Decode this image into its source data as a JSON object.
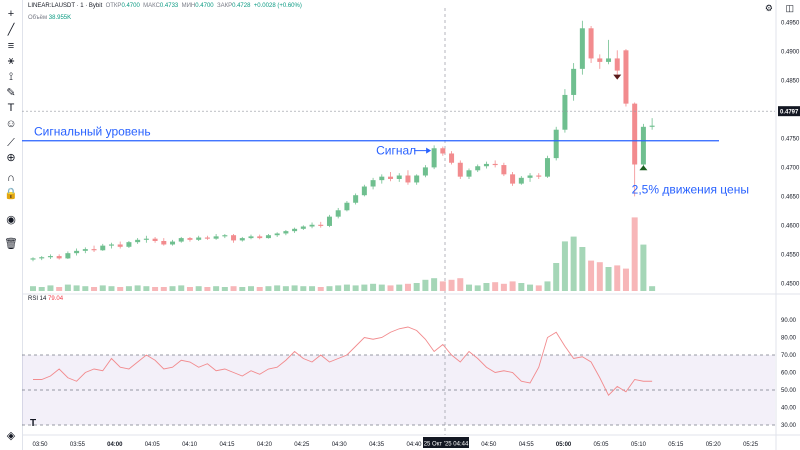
{
  "legend": {
    "symbol": "LINEAR:LAUSDT · 1 · Bybit",
    "open_label": "ОТКР",
    "open": "0.4700",
    "high_label": "МАКС",
    "high": "0.4733",
    "low_label": "МИН",
    "low": "0.4700",
    "close_label": "ЗАКР",
    "close": "0.4728",
    "change": "+0.0028 (+0.60%)"
  },
  "volume_legend": {
    "label": "Объём",
    "value": "38.955K"
  },
  "rsi_legend": {
    "label": "RSI 14",
    "value": "79.04"
  },
  "toolbar_icons": [
    "crosshair-icon",
    "trendline-icon",
    "hlines-icon",
    "fib-icon",
    "pattern-icon",
    "brush-icon",
    "text-icon",
    "emoji-icon",
    "ruler-icon",
    "zoom-icon",
    "magnet-icon",
    "lock-icon",
    "eye-icon",
    "trash-icon"
  ],
  "top_icons": [
    "settings-icon",
    "camera-icon"
  ],
  "chart_data": {
    "type": "candlestick",
    "price_axis": {
      "ticks": [
        "0.4950",
        "0.4900",
        "0.4850",
        "0.4800",
        "0.4750",
        "0.4700",
        "0.4650",
        "0.4600",
        "0.4550",
        "0.4500"
      ],
      "range": [
        0.4485,
        0.4975
      ],
      "last_price_label": "0.4797",
      "last_price": 0.4797
    },
    "time_axis": {
      "ticks": [
        "03:50",
        "03:55",
        "04:00",
        "04:05",
        "04:10",
        "04:15",
        "04:20",
        "04:25",
        "04:30",
        "04:35",
        "04:40",
        "04:45",
        "04:50",
        "04:55",
        "05:00",
        "05:05",
        "05:10",
        "05:15",
        "05:20",
        "05:25"
      ],
      "bold_ticks": [
        "04:00",
        "05:00"
      ],
      "cursor_label": "25 Окт '25",
      "cursor_time": "04:44"
    },
    "candles": [
      {
        "o": 0.4541,
        "h": 0.4545,
        "l": 0.4538,
        "c": 0.4543
      },
      {
        "o": 0.4543,
        "h": 0.4547,
        "l": 0.454,
        "c": 0.4545
      },
      {
        "o": 0.4545,
        "h": 0.455,
        "l": 0.4542,
        "c": 0.4547
      },
      {
        "o": 0.4547,
        "h": 0.455,
        "l": 0.4541,
        "c": 0.4543
      },
      {
        "o": 0.4543,
        "h": 0.4555,
        "l": 0.4542,
        "c": 0.4552
      },
      {
        "o": 0.4552,
        "h": 0.456,
        "l": 0.4548,
        "c": 0.4556
      },
      {
        "o": 0.4556,
        "h": 0.4562,
        "l": 0.4552,
        "c": 0.4559
      },
      {
        "o": 0.4559,
        "h": 0.4565,
        "l": 0.4554,
        "c": 0.4557
      },
      {
        "o": 0.4557,
        "h": 0.4568,
        "l": 0.4556,
        "c": 0.4565
      },
      {
        "o": 0.4565,
        "h": 0.457,
        "l": 0.456,
        "c": 0.4567
      },
      {
        "o": 0.4567,
        "h": 0.4572,
        "l": 0.456,
        "c": 0.4563
      },
      {
        "o": 0.4563,
        "h": 0.4573,
        "l": 0.4561,
        "c": 0.4571
      },
      {
        "o": 0.4571,
        "h": 0.4578,
        "l": 0.4568,
        "c": 0.4575
      },
      {
        "o": 0.4575,
        "h": 0.4582,
        "l": 0.457,
        "c": 0.4577
      },
      {
        "o": 0.4577,
        "h": 0.458,
        "l": 0.457,
        "c": 0.4573
      },
      {
        "o": 0.4573,
        "h": 0.4578,
        "l": 0.4565,
        "c": 0.4567
      },
      {
        "o": 0.4567,
        "h": 0.4575,
        "l": 0.4565,
        "c": 0.4572
      },
      {
        "o": 0.4572,
        "h": 0.458,
        "l": 0.457,
        "c": 0.4578
      },
      {
        "o": 0.4578,
        "h": 0.458,
        "l": 0.4572,
        "c": 0.4575
      },
      {
        "o": 0.4575,
        "h": 0.4582,
        "l": 0.4573,
        "c": 0.4579
      },
      {
        "o": 0.4579,
        "h": 0.4582,
        "l": 0.4575,
        "c": 0.4577
      },
      {
        "o": 0.4577,
        "h": 0.4585,
        "l": 0.4575,
        "c": 0.4581
      },
      {
        "o": 0.4581,
        "h": 0.4585,
        "l": 0.4578,
        "c": 0.4583
      },
      {
        "o": 0.4583,
        "h": 0.4585,
        "l": 0.457,
        "c": 0.4574
      },
      {
        "o": 0.4574,
        "h": 0.458,
        "l": 0.4572,
        "c": 0.4578
      },
      {
        "o": 0.4578,
        "h": 0.4584,
        "l": 0.4576,
        "c": 0.4581
      },
      {
        "o": 0.4581,
        "h": 0.4584,
        "l": 0.4576,
        "c": 0.4578
      },
      {
        "o": 0.4578,
        "h": 0.4585,
        "l": 0.4577,
        "c": 0.4583
      },
      {
        "o": 0.4583,
        "h": 0.4588,
        "l": 0.458,
        "c": 0.4586
      },
      {
        "o": 0.4586,
        "h": 0.4592,
        "l": 0.4583,
        "c": 0.459
      },
      {
        "o": 0.459,
        "h": 0.4596,
        "l": 0.4587,
        "c": 0.4594
      },
      {
        "o": 0.4594,
        "h": 0.46,
        "l": 0.4592,
        "c": 0.4598
      },
      {
        "o": 0.4598,
        "h": 0.4605,
        "l": 0.4595,
        "c": 0.4601
      },
      {
        "o": 0.4601,
        "h": 0.4606,
        "l": 0.4596,
        "c": 0.4599
      },
      {
        "o": 0.4599,
        "h": 0.4618,
        "l": 0.4597,
        "c": 0.4615
      },
      {
        "o": 0.4615,
        "h": 0.463,
        "l": 0.4612,
        "c": 0.4626
      },
      {
        "o": 0.4626,
        "h": 0.4642,
        "l": 0.4624,
        "c": 0.4639
      },
      {
        "o": 0.4639,
        "h": 0.4655,
        "l": 0.4636,
        "c": 0.4652
      },
      {
        "o": 0.4652,
        "h": 0.467,
        "l": 0.465,
        "c": 0.4667
      },
      {
        "o": 0.4667,
        "h": 0.4682,
        "l": 0.4662,
        "c": 0.4678
      },
      {
        "o": 0.4678,
        "h": 0.4688,
        "l": 0.4672,
        "c": 0.4684
      },
      {
        "o": 0.4684,
        "h": 0.4692,
        "l": 0.4676,
        "c": 0.468
      },
      {
        "o": 0.468,
        "h": 0.469,
        "l": 0.4675,
        "c": 0.4686
      },
      {
        "o": 0.4686,
        "h": 0.4695,
        "l": 0.467,
        "c": 0.4674
      },
      {
        "o": 0.4674,
        "h": 0.4688,
        "l": 0.467,
        "c": 0.4686
      },
      {
        "o": 0.4686,
        "h": 0.4704,
        "l": 0.4683,
        "c": 0.47
      },
      {
        "o": 0.47,
        "h": 0.4738,
        "l": 0.4697,
        "c": 0.4733
      },
      {
        "o": 0.4733,
        "h": 0.4736,
        "l": 0.472,
        "c": 0.4724
      },
      {
        "o": 0.4724,
        "h": 0.4728,
        "l": 0.4705,
        "c": 0.4708
      },
      {
        "o": 0.4708,
        "h": 0.4712,
        "l": 0.468,
        "c": 0.4684
      },
      {
        "o": 0.4684,
        "h": 0.4698,
        "l": 0.468,
        "c": 0.4695
      },
      {
        "o": 0.4695,
        "h": 0.4705,
        "l": 0.4692,
        "c": 0.4702
      },
      {
        "o": 0.4702,
        "h": 0.471,
        "l": 0.4698,
        "c": 0.4706
      },
      {
        "o": 0.4706,
        "h": 0.4712,
        "l": 0.47,
        "c": 0.4704
      },
      {
        "o": 0.4704,
        "h": 0.4708,
        "l": 0.4685,
        "c": 0.4688
      },
      {
        "o": 0.4688,
        "h": 0.4692,
        "l": 0.4668,
        "c": 0.4672
      },
      {
        "o": 0.4672,
        "h": 0.4685,
        "l": 0.467,
        "c": 0.4682
      },
      {
        "o": 0.4682,
        "h": 0.469,
        "l": 0.4675,
        "c": 0.4686
      },
      {
        "o": 0.4686,
        "h": 0.469,
        "l": 0.468,
        "c": 0.4684
      },
      {
        "o": 0.4684,
        "h": 0.472,
        "l": 0.4682,
        "c": 0.4716
      },
      {
        "o": 0.4716,
        "h": 0.477,
        "l": 0.4712,
        "c": 0.4765
      },
      {
        "o": 0.4765,
        "h": 0.4835,
        "l": 0.476,
        "c": 0.4825
      },
      {
        "o": 0.4825,
        "h": 0.488,
        "l": 0.4815,
        "c": 0.487
      },
      {
        "o": 0.487,
        "h": 0.4953,
        "l": 0.486,
        "c": 0.494
      },
      {
        "o": 0.494,
        "h": 0.4944,
        "l": 0.488,
        "c": 0.4888
      },
      {
        "o": 0.4888,
        "h": 0.4895,
        "l": 0.487,
        "c": 0.4882
      },
      {
        "o": 0.4882,
        "h": 0.492,
        "l": 0.4878,
        "c": 0.4888
      },
      {
        "o": 0.4888,
        "h": 0.4902,
        "l": 0.486,
        "c": 0.4867
      },
      {
        "o": 0.4902,
        "h": 0.4904,
        "l": 0.4805,
        "c": 0.481
      },
      {
        "o": 0.481,
        "h": 0.4812,
        "l": 0.465,
        "c": 0.4705
      },
      {
        "o": 0.4705,
        "h": 0.4775,
        "l": 0.47,
        "c": 0.477
      },
      {
        "o": 0.477,
        "h": 0.4785,
        "l": 0.4765,
        "c": 0.4772
      }
    ],
    "volume": [
      0.06,
      0.05,
      0.07,
      0.05,
      0.08,
      0.07,
      0.06,
      0.05,
      0.07,
      0.06,
      0.05,
      0.06,
      0.07,
      0.06,
      0.05,
      0.05,
      0.06,
      0.07,
      0.05,
      0.06,
      0.05,
      0.06,
      0.05,
      0.06,
      0.05,
      0.06,
      0.05,
      0.06,
      0.07,
      0.06,
      0.07,
      0.06,
      0.06,
      0.05,
      0.06,
      0.07,
      0.08,
      0.07,
      0.08,
      0.09,
      0.08,
      0.07,
      0.08,
      0.09,
      0.1,
      0.14,
      0.16,
      0.12,
      0.14,
      0.16,
      0.08,
      0.07,
      0.1,
      0.11,
      0.09,
      0.12,
      0.1,
      0.08,
      0.07,
      0.12,
      0.35,
      0.62,
      0.68,
      0.55,
      0.38,
      0.36,
      0.3,
      0.32,
      0.28,
      0.92,
      0.58,
      0.06
    ],
    "rsi": {
      "ticks": [
        "90.00",
        "80.00",
        "70.00",
        "60.00",
        "50.00",
        "40.00",
        "30.00"
      ],
      "overbought": 70,
      "oversold": 30,
      "middle": 50,
      "values": [
        56,
        56,
        58,
        62,
        57,
        55,
        60,
        62,
        61,
        68,
        63,
        62,
        66,
        70,
        67,
        62,
        63,
        67,
        66,
        63,
        65,
        61,
        62,
        60,
        58,
        61,
        59,
        62,
        63,
        67,
        72,
        68,
        66,
        70,
        66,
        68,
        70,
        75,
        80,
        79,
        80,
        83,
        85,
        86,
        84,
        79,
        72,
        76,
        70,
        66,
        72,
        68,
        63,
        60,
        61,
        60,
        55,
        54,
        63,
        80,
        83,
        75,
        68,
        69,
        66,
        57,
        47,
        52,
        49,
        56,
        55,
        55
      ]
    },
    "annotations": [
      {
        "label": "Сигнальный уровень",
        "kind": "horizontal-line",
        "price": 0.4746
      },
      {
        "label": "Сигнал",
        "kind": "arrow",
        "candle_index": 46
      },
      {
        "label": "2,5% движения цены",
        "kind": "text",
        "candle_index": 69
      }
    ],
    "markers": [
      {
        "kind": "sell-arrow",
        "candle_index": 67
      },
      {
        "kind": "buy-arrow",
        "candle_index": 70
      }
    ]
  }
}
